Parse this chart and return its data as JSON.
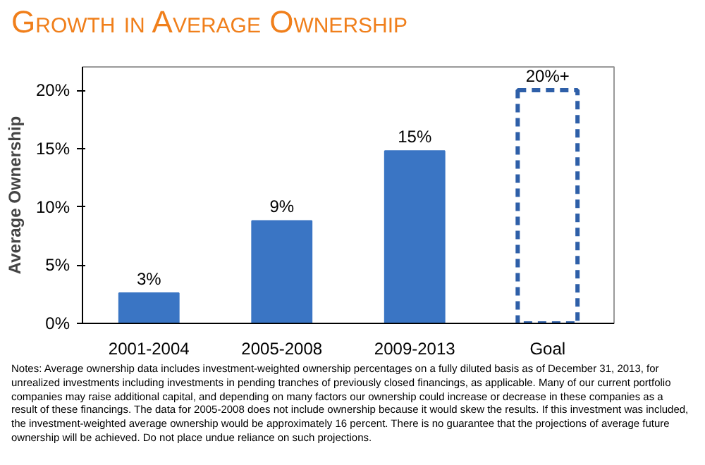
{
  "chart_data": {
    "type": "bar",
    "title": "Growth in Average Ownership",
    "ylabel": "Average Ownership",
    "categories": [
      "2001-2004",
      "2005-2008",
      "2009-2013",
      "Goal"
    ],
    "stacked": true,
    "series": [
      {
        "color": "#3a75c4",
        "values": [
          2.6,
          8.8,
          14.8,
          null
        ],
        "value_labels": [
          "3%",
          "9%",
          "15%",
          null
        ]
      },
      {
        "color": "#2e5fa8",
        "line_style": "dashed",
        "values": [
          null,
          null,
          null,
          20
        ],
        "value_labels": [
          null,
          null,
          null,
          "20%+"
        ]
      }
    ],
    "ylim": [
      0,
      22
    ],
    "yticks": [
      {
        "value": 0,
        "label": "0%"
      },
      {
        "value": 5,
        "label": "5%"
      },
      {
        "value": 10,
        "label": "10%"
      },
      {
        "value": 15,
        "label": "15%"
      },
      {
        "value": 20,
        "label": "20%"
      }
    ],
    "grid": false,
    "annotations": [
      "Notes: Average ownership data includes investment-weighted ownership percentages on a fully diluted basis as of December 31, 2013, for unrealized investments including investments in pending tranches of previously closed financings, as applicable.  Many of our current portfolio companies may raise additional capital, and depending on many factors our ownership could increase or decrease in these companies as a result of these financings.  The data for 2005-2008 does not include ownership because it would skew the results.   If this investment was included, the investment-weighted average ownership would be approximately 16 percent.   There is no guarantee that the projections of average future ownership will be achieved.  Do not place undue reliance on such projections."
    ]
  }
}
